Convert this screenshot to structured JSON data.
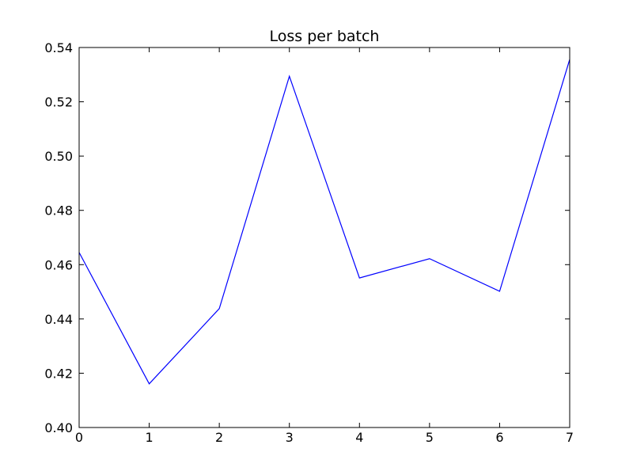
{
  "chart_data": {
    "type": "line",
    "title": "Loss per batch",
    "xlabel": "",
    "ylabel": "",
    "xlim": [
      0,
      7
    ],
    "ylim": [
      0.4,
      0.54
    ],
    "x_ticks": [
      "0",
      "1",
      "2",
      "3",
      "4",
      "5",
      "6",
      "7"
    ],
    "y_ticks": [
      "0.40",
      "0.42",
      "0.44",
      "0.46",
      "0.48",
      "0.50",
      "0.52",
      "0.54"
    ],
    "grid": false,
    "series": [
      {
        "color": "#0000ff",
        "x": [
          0,
          1,
          2,
          3,
          4,
          5,
          6,
          7
        ],
        "y": [
          0.4645,
          0.4161,
          0.4438,
          0.5294,
          0.4551,
          0.4622,
          0.4502,
          0.5356
        ]
      }
    ]
  }
}
